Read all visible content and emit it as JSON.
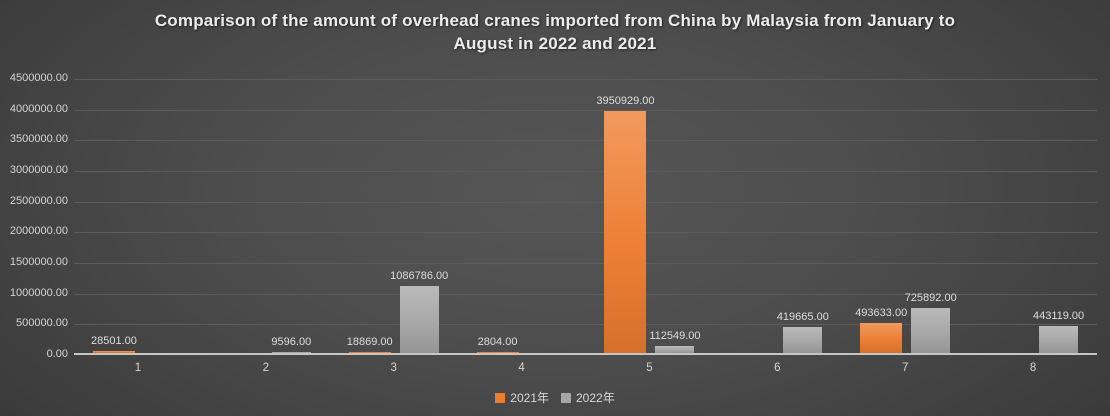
{
  "title": "Comparison of the amount of overhead cranes imported from China by Malaysia from January to August in 2022 and 2021",
  "colors": {
    "background_center": "#565656",
    "background_edge": "#242424",
    "series_2021": "#ED7D31",
    "series_2022": "#A6A6A6",
    "gridline": "#5C5C5C",
    "axis_line": "#C6C6C6",
    "text": "#ECECEC"
  },
  "chart_data": {
    "type": "bar",
    "title": "Comparison of the amount of overhead cranes imported from China by Malaysia from January to August in 2022 and 2021",
    "categories": [
      "1",
      "2",
      "3",
      "4",
      "5",
      "6",
      "7",
      "8"
    ],
    "series": [
      {
        "name": "2021年",
        "color": "#ED7D31",
        "values": [
          28501,
          null,
          18869,
          2804,
          3950929,
          null,
          493633,
          null
        ],
        "labels": [
          "28501.00",
          null,
          "18869.00",
          "2804.00",
          "3950929.00",
          null,
          "493633.00",
          null
        ]
      },
      {
        "name": "2022年",
        "color": "#A6A6A6",
        "values": [
          null,
          9596,
          1086786,
          null,
          112549,
          419665,
          725892,
          443119
        ],
        "labels": [
          null,
          "9596.00",
          "1086786.00",
          null,
          "112549.00",
          "419665.00",
          "725892.00",
          "443119.00"
        ]
      }
    ],
    "xlabel": "",
    "ylabel": "",
    "ylim": [
      0,
      4500000
    ],
    "ytick_step": 500000,
    "ytick_labels": [
      "0.00",
      "500000.00",
      "1000000.00",
      "1500000.00",
      "2000000.00",
      "2500000.00",
      "3000000.00",
      "3500000.00",
      "4000000.00",
      "4500000.00"
    ],
    "grid": true,
    "legend_position": "bottom",
    "value_label_format": "0.00"
  }
}
